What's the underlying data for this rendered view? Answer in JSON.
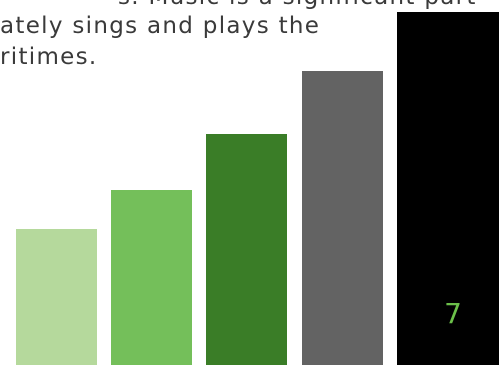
{
  "paragraph": {
    "line_0": "s. Music is a significant part",
    "line_1": "ately sings and plays the",
    "line_2": "ritimes."
  },
  "decorative_bars": [
    {
      "color": "#b5d99c"
    },
    {
      "color": "#74bf5a"
    },
    {
      "color": "#3a7d27"
    },
    {
      "color": "#636363"
    },
    {
      "color": "#000000"
    }
  ],
  "page_number": "7",
  "colors": {
    "text": "#3a3a3a",
    "accent": "#6cc04a",
    "background": "#ffffff"
  }
}
